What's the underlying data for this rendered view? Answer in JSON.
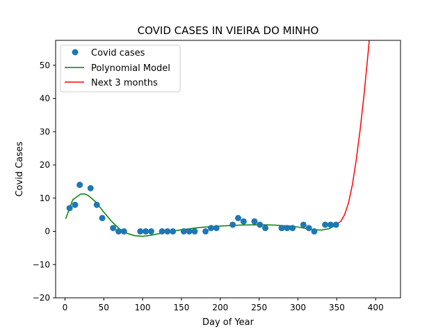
{
  "chart_data": {
    "type": "scatter",
    "title": "COVID CASES IN VIEIRA DO MINHO",
    "xlabel": "Day of Year",
    "ylabel": "Covid Cases",
    "xlim": [
      -12,
      432
    ],
    "ylim": [
      -20,
      57.5
    ],
    "xticks": [
      0,
      50,
      100,
      150,
      200,
      250,
      300,
      350,
      400
    ],
    "yticks": [
      -20,
      -10,
      0,
      10,
      20,
      30,
      40,
      50
    ],
    "legend_position": "upper-left",
    "colors": {
      "points": "#1f77b4",
      "model": "#008000",
      "forecast": "#ff0000"
    },
    "series": [
      {
        "name": "Covid cases",
        "kind": "scatter",
        "x": [
          6,
          13,
          19,
          33,
          41,
          48,
          62,
          69,
          76,
          97,
          104,
          111,
          125,
          132,
          139,
          153,
          160,
          167,
          181,
          188,
          195,
          216,
          223,
          230,
          244,
          251,
          258,
          279,
          286,
          293,
          307,
          314,
          321,
          335,
          342,
          349
        ],
        "y": [
          7,
          8,
          14,
          13,
          8,
          4,
          1,
          0,
          0,
          0,
          0,
          0,
          0,
          0,
          0,
          0,
          0,
          0,
          0,
          1,
          1,
          2,
          4,
          3,
          3,
          2,
          1,
          1,
          1,
          1,
          2,
          1,
          0,
          2,
          2,
          2
        ]
      },
      {
        "name": "Polynomial Model",
        "kind": "line",
        "x": [
          1,
          10,
          20,
          25,
          30,
          40,
          50,
          60,
          70,
          80,
          90,
          100,
          110,
          125,
          150,
          175,
          200,
          225,
          250,
          270,
          290,
          300,
          310,
          320,
          330,
          340,
          350
        ],
        "y": [
          3.8,
          9.5,
          11.2,
          11.3,
          10.8,
          8.8,
          5.8,
          3,
          0.8,
          -0.6,
          -1.3,
          -1.5,
          -1.2,
          -0.5,
          0.5,
          1.2,
          1.6,
          1.9,
          2,
          1.9,
          1.6,
          1.3,
          0.9,
          0.5,
          0.4,
          0.8,
          2
        ]
      },
      {
        "name": "Next 3 months",
        "kind": "line",
        "x": [
          349,
          355,
          360,
          365,
          370,
          375,
          380,
          385,
          390,
          392
        ],
        "y": [
          2,
          3,
          5,
          8.5,
          14,
          21.5,
          30.5,
          41,
          53,
          58
        ]
      }
    ]
  }
}
